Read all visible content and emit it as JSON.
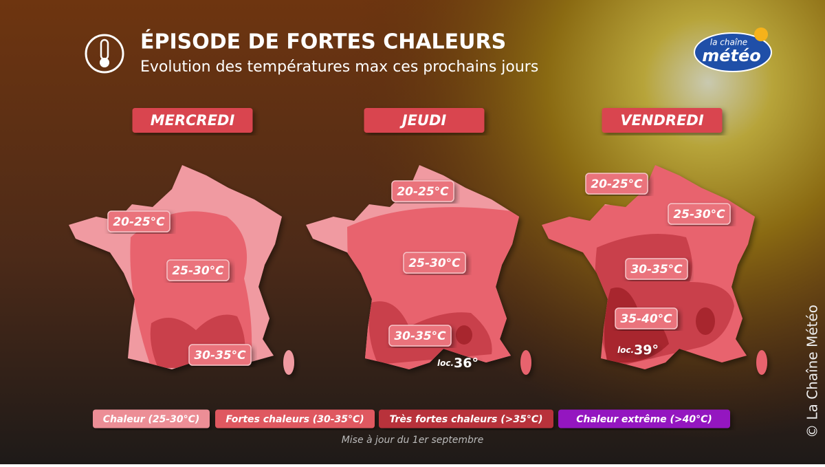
{
  "header": {
    "title": "ÉPISODE DE FORTES CHALEURS",
    "subtitle": "Evolution des températures max ces prochains jours"
  },
  "logo": {
    "line1": "la chaîne",
    "line2": "météo"
  },
  "maps": [
    {
      "day": "MERCREDI",
      "labels": [
        "20-25°C",
        "25-30°C",
        "30-35°C"
      ]
    },
    {
      "day": "JEUDI",
      "labels": [
        "20-25°C",
        "25-30°C",
        "30-35°C"
      ],
      "local": {
        "prefix": "loc.",
        "value": "36°"
      }
    },
    {
      "day": "VENDREDI",
      "labels": [
        "20-25°C",
        "25-30°C",
        "30-35°C",
        "35-40°C"
      ],
      "local": {
        "prefix": "loc.",
        "value": "39°"
      }
    }
  ],
  "legend": [
    "Chaleur (25-30°C)",
    "Fortes chaleurs (30-35°C)",
    "Très fortes chaleurs (>35°C)",
    "Chaleur extrême (>40°C)"
  ],
  "footer": "Mise à jour du 1er septembre",
  "copyright": "© La Chaîne Météo"
}
